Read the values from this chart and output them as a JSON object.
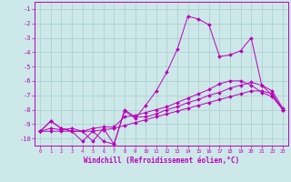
{
  "xlabel": "Windchill (Refroidissement éolien,°C)",
  "background_color": "#cce8e8",
  "grid_color": "#aacccc",
  "line_color": "#bb00bb",
  "xlim": [
    -0.5,
    23.5
  ],
  "ylim": [
    -10.5,
    -0.5
  ],
  "yticks": [
    -10,
    -9,
    -8,
    -7,
    -6,
    -5,
    -4,
    -3,
    -2,
    -1
  ],
  "xticks": [
    0,
    1,
    2,
    3,
    4,
    5,
    6,
    7,
    8,
    9,
    10,
    11,
    12,
    13,
    14,
    15,
    16,
    17,
    18,
    19,
    20,
    21,
    22,
    23
  ],
  "s1_x": [
    0,
    1,
    2,
    3,
    4,
    5,
    6,
    7,
    8,
    9,
    10,
    11,
    12,
    13,
    14,
    15,
    16,
    17,
    18,
    19,
    20,
    21,
    22,
    23
  ],
  "s1_y": [
    -9.5,
    -8.8,
    -9.3,
    -9.5,
    -10.2,
    -9.5,
    -10.2,
    -10.4,
    -8.1,
    -8.6,
    -7.7,
    -6.7,
    -5.4,
    -3.8,
    -1.5,
    -1.7,
    -2.1,
    -4.3,
    -4.2,
    -3.9,
    -3.0,
    -6.3,
    -7.0,
    -8.0
  ],
  "s2_x": [
    0,
    1,
    2,
    3,
    4,
    5,
    6,
    7,
    8,
    9,
    10,
    11,
    12,
    13,
    14,
    15,
    16,
    17,
    18,
    19,
    20,
    21,
    22,
    23
  ],
  "s2_y": [
    -9.5,
    -8.8,
    -9.3,
    -9.5,
    -9.5,
    -9.3,
    -9.2,
    -9.2,
    -8.5,
    -8.4,
    -8.2,
    -8.0,
    -7.8,
    -7.5,
    -7.2,
    -6.9,
    -6.6,
    -6.2,
    -6.0,
    -6.0,
    -6.3,
    -6.8,
    -7.1,
    -8.0
  ],
  "s3_x": [
    0,
    1,
    2,
    3,
    4,
    5,
    6,
    7,
    8,
    9,
    10,
    11,
    12,
    13,
    14,
    15,
    16,
    17,
    18,
    19,
    20,
    21,
    22,
    23
  ],
  "s3_y": [
    -9.5,
    -9.3,
    -9.4,
    -9.3,
    -9.5,
    -10.2,
    -9.3,
    -10.4,
    -8.0,
    -8.5,
    -8.5,
    -8.3,
    -8.0,
    -7.8,
    -7.5,
    -7.3,
    -7.0,
    -6.8,
    -6.5,
    -6.3,
    -6.1,
    -6.3,
    -6.7,
    -7.9
  ],
  "s4_x": [
    0,
    1,
    2,
    3,
    4,
    5,
    6,
    7,
    8,
    9,
    10,
    11,
    12,
    13,
    14,
    15,
    16,
    17,
    18,
    19,
    20,
    21,
    22,
    23
  ],
  "s4_y": [
    -9.5,
    -9.5,
    -9.5,
    -9.5,
    -9.5,
    -9.5,
    -9.4,
    -9.3,
    -9.1,
    -8.9,
    -8.7,
    -8.5,
    -8.3,
    -8.1,
    -7.9,
    -7.7,
    -7.5,
    -7.3,
    -7.1,
    -6.9,
    -6.7,
    -6.7,
    -6.9,
    -8.0
  ]
}
